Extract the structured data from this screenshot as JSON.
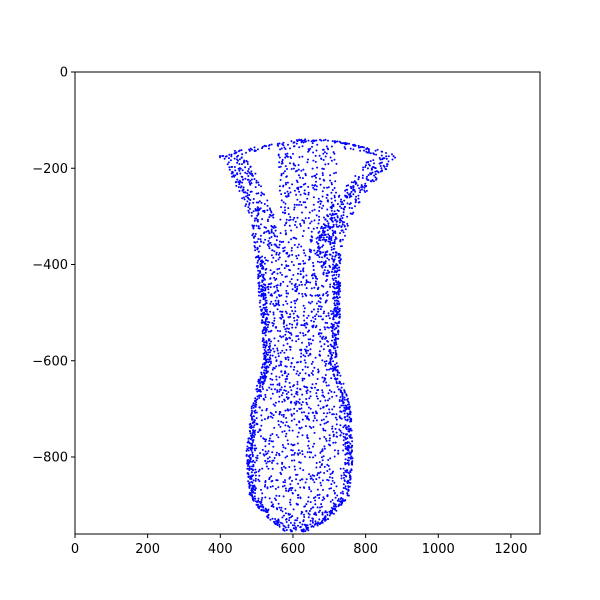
{
  "chart_data": {
    "type": "scatter",
    "title": "",
    "xlabel": "",
    "ylabel": "",
    "xlim": [
      0,
      1280
    ],
    "ylim": [
      -960,
      0
    ],
    "xticks": [
      0,
      200,
      400,
      600,
      800,
      1000,
      1200
    ],
    "yticks": [
      0,
      -200,
      -400,
      -600,
      -800
    ],
    "x_tick_labels": [
      "0",
      "200",
      "400",
      "600",
      "800",
      "1000",
      "1200"
    ],
    "y_tick_labels": [
      "0",
      "−200",
      "−400",
      "−600",
      "−800"
    ],
    "grid": false,
    "legend": "none",
    "marker_color": "#0000ff",
    "marker_style": "small dots",
    "series": [
      {
        "color": "#0000ff",
        "shape_outline": {
          "description": "dense point cloud forming a vase/flower-like shape: wide flared top with two petal arms, narrow stem, rounded bulb at bottom",
          "extent_x": [
            390,
            890
          ],
          "extent_y": [
            -955,
            -130
          ],
          "profile": [
            {
              "y": -140,
              "x_left": 620,
              "x_right": 700
            },
            {
              "y": -170,
              "x_left": 390,
              "x_right": 890
            },
            {
              "y": -200,
              "x_left": 420,
              "x_right": 860
            },
            {
              "y": -250,
              "x_left": 450,
              "x_right": 800
            },
            {
              "y": -300,
              "x_left": 480,
              "x_right": 760
            },
            {
              "y": -350,
              "x_left": 490,
              "x_right": 740
            },
            {
              "y": -400,
              "x_left": 500,
              "x_right": 730
            },
            {
              "y": -500,
              "x_left": 510,
              "x_right": 730
            },
            {
              "y": -600,
              "x_left": 520,
              "x_right": 720
            },
            {
              "y": -650,
              "x_left": 500,
              "x_right": 740
            },
            {
              "y": -700,
              "x_left": 485,
              "x_right": 760
            },
            {
              "y": -800,
              "x_left": 470,
              "x_right": 765
            },
            {
              "y": -880,
              "x_left": 480,
              "x_right": 755
            },
            {
              "y": -930,
              "x_left": 530,
              "x_right": 700
            },
            {
              "y": -955,
              "x_left": 580,
              "x_right": 640
            }
          ]
        }
      }
    ]
  }
}
